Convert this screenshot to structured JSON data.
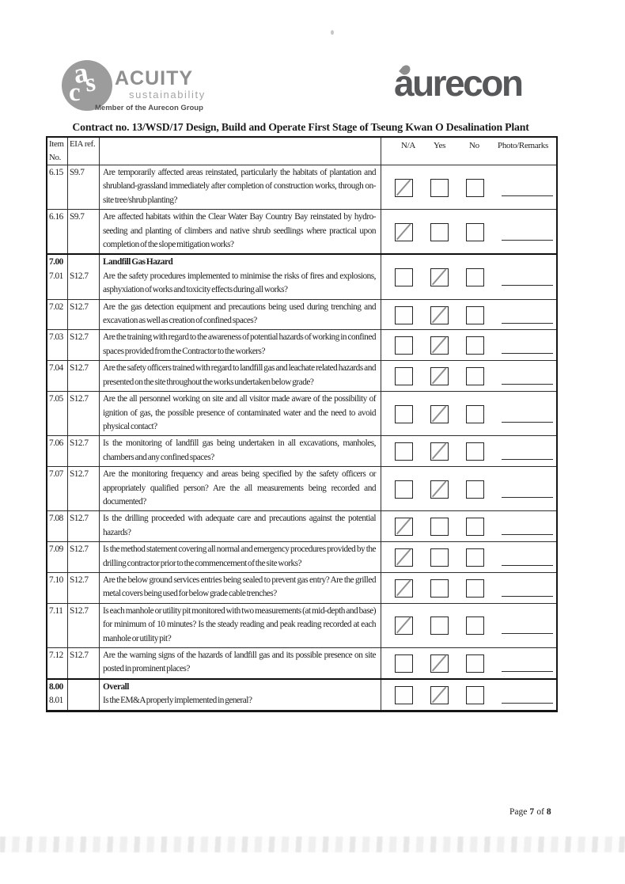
{
  "logos": {
    "acuity": {
      "letters": [
        "a",
        "s",
        "c"
      ],
      "brand": "ACUITY",
      "tagline": "sustainability",
      "member_line": "Member of the Aurecon Group"
    },
    "aurecon": {
      "brand": "aurecon"
    }
  },
  "title": "Contract no.  13/WSD/17 Design, Build and Operate First Stage of Tseung Kwan O Desalination Plant",
  "table": {
    "header": {
      "item_line1": "Item",
      "item_line2": "No.",
      "eia_ref": "EIA ref.",
      "na": "N/A",
      "yes": "Yes",
      "no": "No",
      "remarks": "Photo/Remarks"
    },
    "rows": [
      {
        "item": "6.15",
        "ref": "S9.7",
        "question": "Are temporarily affected areas reinstated, particularly the habitats of plantation and shrubland-grassland immediately after completion of construction works, through on-site tree/shrub planting?",
        "checked": "na"
      },
      {
        "item": "6.16",
        "ref": "S9.7",
        "question": "Are affected habitats within the Clear Water Bay Country Bay reinstated by hydro-seeding and planting of climbers and native shrub seedlings where practical upon completion of the slope mitigation works?",
        "checked": "na"
      },
      {
        "item": "7.00",
        "sub_item": "7.01",
        "ref": "S12.7",
        "section": "Landfill Gas Hazard",
        "question": "Are the safety procedures implemented to minimise the risks of fires and explosions, asphyxiation of works and toxicity effects during all works?",
        "checked": "yes",
        "thick_top": true
      },
      {
        "item": "7.02",
        "ref": "S12.7",
        "question": "Are the gas detection equipment and precautions being used during trenching and excavation as well as creation of confined spaces?",
        "checked": "yes"
      },
      {
        "item": "7.03",
        "ref": "S12.7",
        "question": "Are the training with regard to the awareness of potential hazards of working in confined spaces provided from the Contractor to the workers?",
        "checked": "yes"
      },
      {
        "item": "7.04",
        "ref": "S12.7",
        "question": "Are the safety officers trained with regard to landfill gas and leachate related hazards and presented on the site throughout the works undertaken below grade?",
        "checked": "yes"
      },
      {
        "item": "7.05",
        "ref": "S12.7",
        "question": "Are the all personnel working on site and all visitor made aware of the possibility of ignition of gas, the possible presence of contaminated water and the need to avoid physical contact?",
        "checked": "yes"
      },
      {
        "item": "7.06",
        "ref": "S12.7",
        "question": "Is the monitoring of landfill gas being undertaken in all excavations, manholes, chambers and any confined spaces?",
        "checked": "yes"
      },
      {
        "item": "7.07",
        "ref": "S12.7",
        "question": "Are the monitoring frequency and areas being specified by the safety officers or appropriately qualified person? Are the all measurements being recorded and documented?",
        "checked": "yes"
      },
      {
        "item": "7.08",
        "ref": "S12.7",
        "question": "Is the drilling proceeded with adequate care and precautions against the potential hazards?",
        "checked": "na"
      },
      {
        "item": "7.09",
        "ref": "S12.7",
        "question": "Is the method statement covering all normal and emergency procedures provided by the drilling contractor prior to the commencement of the site works?",
        "checked": "na"
      },
      {
        "item": "7.10",
        "ref": "S12.7",
        "question": "Are the below ground services entries being sealed to prevent gas entry? Are the grilled metal covers being used for below grade cable trenches?",
        "checked": "na"
      },
      {
        "item": "7.11",
        "ref": "S12.7",
        "question": "Is each manhole or utility pit monitored with two measurements (at mid-depth and base) for minimum of 10 minutes? Is the steady reading and peak reading recorded at each manhole or utility pit?",
        "checked": "na"
      },
      {
        "item": "7.12",
        "ref": "S12.7",
        "question": "Are the warning signs of the hazards of landfill gas and its possible presence on site posted in prominent places?",
        "checked": "yes"
      },
      {
        "item": "8.00",
        "sub_item": "8.01",
        "ref": "",
        "section": "Overall",
        "question": "Is the EM&A properly implemented in general?",
        "checked": "yes",
        "thick_top": true
      }
    ]
  },
  "footer": {
    "label": "Page",
    "page": "7",
    "of": "of",
    "total": "8"
  },
  "colors": {
    "ink": "#1d1d1d",
    "logo_gray": "#8f8f8f",
    "aurecon_charcoal": "#57585a",
    "check_mark_gray": "#8f8f8f",
    "table_border": "#2d2d2d"
  }
}
